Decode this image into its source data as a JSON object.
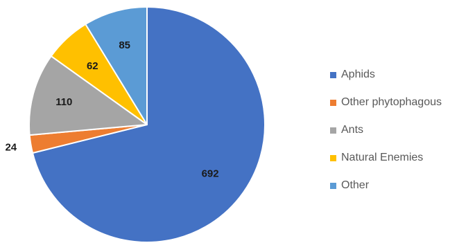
{
  "chart_data": {
    "type": "pie",
    "title": "",
    "categories": [
      "Aphids",
      "Other phytophagous",
      "Ants",
      "Natural Enemies",
      "Other"
    ],
    "values": [
      692,
      24,
      110,
      62,
      85
    ],
    "data_labels": [
      "692",
      "24",
      "110",
      "62",
      "85"
    ],
    "colors": [
      "#4472C4",
      "#ED7D31",
      "#A5A5A5",
      "#FFC000",
      "#5B9BD5"
    ],
    "start_angle_deg": 0,
    "direction": "clockwise",
    "legend_position": "right"
  }
}
